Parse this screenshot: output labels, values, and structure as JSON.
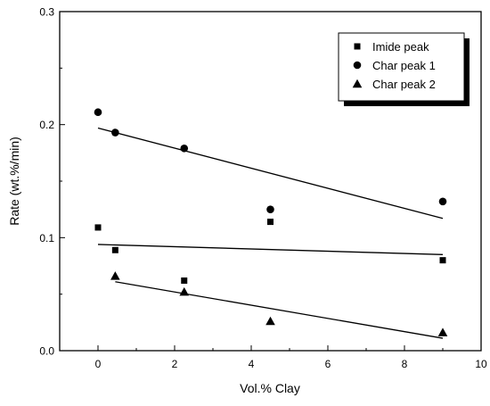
{
  "chart_data": {
    "type": "scatter",
    "xlabel": "Vol.% Clay",
    "ylabel": "Rate (wt.%/min)",
    "xlim": [
      -1,
      10
    ],
    "ylim": [
      0.0,
      0.3
    ],
    "x_ticks": [
      "0",
      "2",
      "4",
      "6",
      "8",
      "10"
    ],
    "y_ticks": [
      "0.0",
      "0.1",
      "0.2",
      "0.3"
    ],
    "grid": false,
    "legend_position": "top-right",
    "series": [
      {
        "name": "Imide peak",
        "marker": "square",
        "x": [
          0,
          0.45,
          2.25,
          4.5,
          9
        ],
        "y": [
          0.109,
          0.089,
          0.062,
          0.114,
          0.08
        ],
        "fit": [
          [
            0,
            0.094
          ],
          [
            9,
            0.085
          ]
        ]
      },
      {
        "name": "Char peak 1",
        "marker": "circle",
        "x": [
          0,
          0.45,
          2.25,
          4.5,
          9
        ],
        "y": [
          0.211,
          0.193,
          0.179,
          0.125,
          0.132
        ],
        "fit": [
          [
            0,
            0.197
          ],
          [
            9,
            0.117
          ]
        ]
      },
      {
        "name": "Char peak 2",
        "marker": "triangle",
        "x": [
          0.45,
          2.25,
          4.5,
          9
        ],
        "y": [
          0.066,
          0.052,
          0.026,
          0.016
        ],
        "fit": [
          [
            0.45,
            0.061
          ],
          [
            9,
            0.011
          ]
        ]
      }
    ]
  }
}
